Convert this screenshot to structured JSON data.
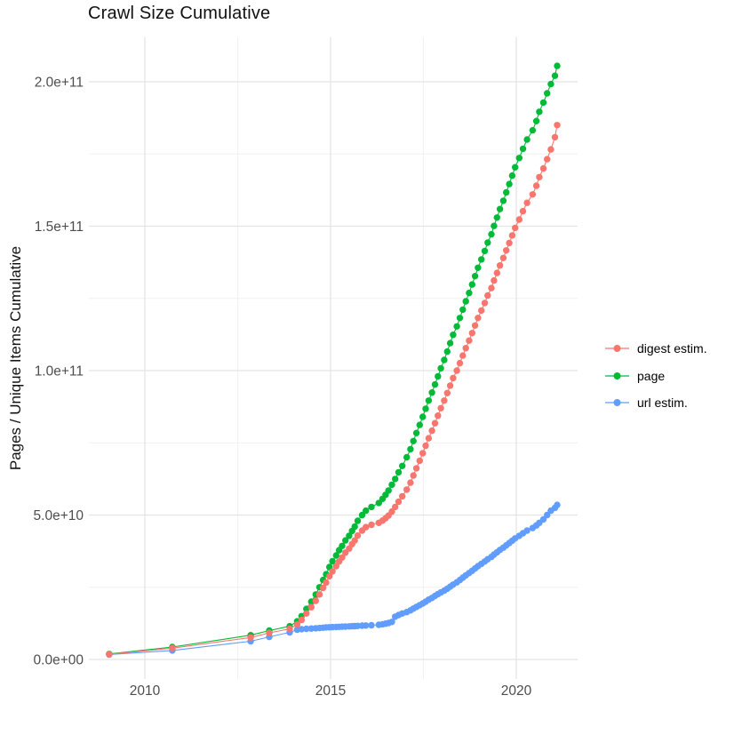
{
  "chart_data": {
    "type": "scatter",
    "title": "Crawl Size Cumulative",
    "xlabel": "",
    "ylabel": "Pages / Unique Items Cumulative",
    "legend_position": "right",
    "grid": true,
    "values_unit_multiplier": 1000000000,
    "x_axis": {
      "range": [
        2008.5,
        2021.7
      ],
      "ticks": [
        {
          "year": 2010,
          "label": "2010"
        },
        {
          "year": 2015,
          "label": "2015"
        },
        {
          "year": 2020,
          "label": "2020"
        }
      ],
      "minor": [
        2012.5,
        2017.5
      ]
    },
    "y_axis": {
      "range_billions": [
        -7,
        215
      ],
      "ticks": [
        {
          "value": 0,
          "label": "0.0e+00"
        },
        {
          "value": 50,
          "label": "5.0e+10"
        },
        {
          "value": 100,
          "label": "1.0e+11"
        },
        {
          "value": 150,
          "label": "1.5e+11"
        },
        {
          "value": 200,
          "label": "2.0e+11"
        }
      ],
      "minor": [
        25,
        75,
        125,
        175
      ]
    },
    "series": [
      {
        "name": "digest estim.",
        "color": "#F8766D",
        "points": [
          [
            2009.04,
            1.8
          ],
          [
            2010.74,
            3.9
          ],
          [
            2012.85,
            7.6
          ],
          [
            2013.35,
            9.2
          ],
          [
            2013.9,
            10.6
          ],
          [
            2014.1,
            12.1
          ],
          [
            2014.22,
            13.7
          ],
          [
            2014.35,
            15.9
          ],
          [
            2014.48,
            18.1
          ],
          [
            2014.6,
            20.3
          ],
          [
            2014.7,
            22.5
          ],
          [
            2014.8,
            24.8
          ],
          [
            2014.88,
            26.6
          ],
          [
            2014.97,
            28.8
          ],
          [
            2015.05,
            30.5
          ],
          [
            2015.15,
            32.3
          ],
          [
            2015.23,
            33.9
          ],
          [
            2015.31,
            35.3
          ],
          [
            2015.4,
            37.0
          ],
          [
            2015.5,
            38.4
          ],
          [
            2015.58,
            39.9
          ],
          [
            2015.65,
            41.2
          ],
          [
            2015.73,
            42.9
          ],
          [
            2015.85,
            44.6
          ],
          [
            2015.95,
            45.8
          ],
          [
            2016.1,
            46.6
          ],
          [
            2016.3,
            47.3
          ],
          [
            2016.4,
            48.1
          ],
          [
            2016.48,
            48.9
          ],
          [
            2016.56,
            49.8
          ],
          [
            2016.65,
            51.2
          ],
          [
            2016.74,
            52.8
          ],
          [
            2016.83,
            54.6
          ],
          [
            2016.93,
            56.5
          ],
          [
            2017.05,
            58.8
          ],
          [
            2017.15,
            61.2
          ],
          [
            2017.23,
            63.7
          ],
          [
            2017.31,
            66.2
          ],
          [
            2017.4,
            68.8
          ],
          [
            2017.48,
            71.4
          ],
          [
            2017.56,
            74.0
          ],
          [
            2017.64,
            76.6
          ],
          [
            2017.73,
            79.2
          ],
          [
            2017.81,
            81.8
          ],
          [
            2017.89,
            84.4
          ],
          [
            2017.97,
            87.0
          ],
          [
            2018.06,
            89.6
          ],
          [
            2018.14,
            92.2
          ],
          [
            2018.22,
            94.8
          ],
          [
            2018.3,
            97.4
          ],
          [
            2018.4,
            100.0
          ],
          [
            2018.48,
            102.6
          ],
          [
            2018.56,
            105.2
          ],
          [
            2018.64,
            107.8
          ],
          [
            2018.73,
            110.4
          ],
          [
            2018.81,
            113.0
          ],
          [
            2018.89,
            115.6
          ],
          [
            2018.97,
            118.2
          ],
          [
            2019.06,
            120.8
          ],
          [
            2019.15,
            123.4
          ],
          [
            2019.23,
            126.0
          ],
          [
            2019.33,
            128.6
          ],
          [
            2019.4,
            131.2
          ],
          [
            2019.48,
            133.8
          ],
          [
            2019.56,
            136.4
          ],
          [
            2019.65,
            139.0
          ],
          [
            2019.73,
            141.6
          ],
          [
            2019.81,
            144.2
          ],
          [
            2019.89,
            146.8
          ],
          [
            2019.97,
            149.4
          ],
          [
            2020.08,
            152.3
          ],
          [
            2020.18,
            155.2
          ],
          [
            2020.29,
            158.1
          ],
          [
            2020.44,
            161.0
          ],
          [
            2020.54,
            164.0
          ],
          [
            2020.62,
            167.0
          ],
          [
            2020.73,
            170.0
          ],
          [
            2020.83,
            173.2
          ],
          [
            2020.93,
            176.6
          ],
          [
            2021.04,
            180.8
          ],
          [
            2021.1,
            185.0
          ]
        ]
      },
      {
        "name": "page",
        "color": "#00BA38",
        "points": [
          [
            2009.04,
            1.9
          ],
          [
            2010.74,
            4.3
          ],
          [
            2012.85,
            8.4
          ],
          [
            2013.35,
            10.0
          ],
          [
            2013.9,
            11.5
          ],
          [
            2014.1,
            13.2
          ],
          [
            2014.22,
            15.0
          ],
          [
            2014.35,
            17.5
          ],
          [
            2014.48,
            20.0
          ],
          [
            2014.6,
            22.5
          ],
          [
            2014.7,
            25.0
          ],
          [
            2014.8,
            27.5
          ],
          [
            2014.88,
            29.5
          ],
          [
            2014.97,
            32.0
          ],
          [
            2015.05,
            34.0
          ],
          [
            2015.15,
            36.0
          ],
          [
            2015.23,
            37.8
          ],
          [
            2015.31,
            39.3
          ],
          [
            2015.4,
            41.2
          ],
          [
            2015.5,
            42.8
          ],
          [
            2015.58,
            44.5
          ],
          [
            2015.65,
            46.0
          ],
          [
            2015.73,
            48.0
          ],
          [
            2015.85,
            50.0
          ],
          [
            2015.95,
            51.5
          ],
          [
            2016.1,
            52.8
          ],
          [
            2016.3,
            54.2
          ],
          [
            2016.4,
            55.6
          ],
          [
            2016.48,
            57.0
          ],
          [
            2016.56,
            58.5
          ],
          [
            2016.65,
            60.5
          ],
          [
            2016.74,
            62.5
          ],
          [
            2016.83,
            64.8
          ],
          [
            2016.93,
            67.0
          ],
          [
            2017.05,
            70.0
          ],
          [
            2017.15,
            72.8
          ],
          [
            2017.23,
            75.6
          ],
          [
            2017.31,
            78.4
          ],
          [
            2017.4,
            81.2
          ],
          [
            2017.48,
            84.0
          ],
          [
            2017.56,
            86.8
          ],
          [
            2017.64,
            89.6
          ],
          [
            2017.73,
            92.4
          ],
          [
            2017.81,
            95.2
          ],
          [
            2017.89,
            98.0
          ],
          [
            2017.97,
            100.8
          ],
          [
            2018.06,
            103.7
          ],
          [
            2018.14,
            106.6
          ],
          [
            2018.22,
            109.5
          ],
          [
            2018.3,
            112.4
          ],
          [
            2018.4,
            115.3
          ],
          [
            2018.48,
            118.2
          ],
          [
            2018.56,
            121.1
          ],
          [
            2018.64,
            124.0
          ],
          [
            2018.73,
            126.9
          ],
          [
            2018.81,
            129.8
          ],
          [
            2018.89,
            132.7
          ],
          [
            2018.97,
            135.6
          ],
          [
            2019.06,
            138.5
          ],
          [
            2019.15,
            141.4
          ],
          [
            2019.23,
            144.3
          ],
          [
            2019.33,
            147.2
          ],
          [
            2019.4,
            150.1
          ],
          [
            2019.48,
            153.0
          ],
          [
            2019.56,
            155.9
          ],
          [
            2019.65,
            158.8
          ],
          [
            2019.73,
            161.7
          ],
          [
            2019.81,
            164.6
          ],
          [
            2019.89,
            167.5
          ],
          [
            2019.97,
            170.4
          ],
          [
            2020.08,
            173.6
          ],
          [
            2020.18,
            176.8
          ],
          [
            2020.29,
            180.0
          ],
          [
            2020.44,
            183.2
          ],
          [
            2020.54,
            186.4
          ],
          [
            2020.62,
            189.6
          ],
          [
            2020.73,
            192.8
          ],
          [
            2020.83,
            196.0
          ],
          [
            2020.93,
            199.2
          ],
          [
            2021.04,
            202.1
          ],
          [
            2021.1,
            205.5
          ]
        ]
      },
      {
        "name": "url estim.",
        "color": "#619CFF",
        "points": [
          [
            2009.04,
            1.7
          ],
          [
            2010.74,
            3.1
          ],
          [
            2012.85,
            6.3
          ],
          [
            2013.35,
            7.8
          ],
          [
            2013.9,
            9.4
          ],
          [
            2014.1,
            10.3
          ],
          [
            2014.22,
            10.5
          ],
          [
            2014.35,
            10.6
          ],
          [
            2014.48,
            10.7
          ],
          [
            2014.6,
            10.8
          ],
          [
            2014.7,
            10.9
          ],
          [
            2014.8,
            11.0
          ],
          [
            2014.88,
            11.1
          ],
          [
            2014.97,
            11.15
          ],
          [
            2015.05,
            11.2
          ],
          [
            2015.15,
            11.25
          ],
          [
            2015.23,
            11.3
          ],
          [
            2015.31,
            11.35
          ],
          [
            2015.4,
            11.4
          ],
          [
            2015.5,
            11.45
          ],
          [
            2015.58,
            11.5
          ],
          [
            2015.65,
            11.55
          ],
          [
            2015.73,
            11.6
          ],
          [
            2015.85,
            11.7
          ],
          [
            2015.95,
            11.75
          ],
          [
            2016.1,
            11.85
          ],
          [
            2016.3,
            12.0
          ],
          [
            2016.4,
            12.2
          ],
          [
            2016.48,
            12.4
          ],
          [
            2016.56,
            12.6
          ],
          [
            2016.65,
            13.0
          ],
          [
            2016.74,
            14.8
          ],
          [
            2016.83,
            15.4
          ],
          [
            2016.93,
            15.9
          ],
          [
            2017.05,
            16.4
          ],
          [
            2017.15,
            17.0
          ],
          [
            2017.23,
            17.6
          ],
          [
            2017.31,
            18.2
          ],
          [
            2017.4,
            18.8
          ],
          [
            2017.48,
            19.4
          ],
          [
            2017.56,
            20.0
          ],
          [
            2017.64,
            20.7
          ],
          [
            2017.73,
            21.3
          ],
          [
            2017.81,
            22.0
          ],
          [
            2017.89,
            22.6
          ],
          [
            2017.97,
            23.2
          ],
          [
            2018.06,
            23.8
          ],
          [
            2018.14,
            24.5
          ],
          [
            2018.22,
            25.2
          ],
          [
            2018.3,
            25.9
          ],
          [
            2018.4,
            26.7
          ],
          [
            2018.48,
            27.5
          ],
          [
            2018.56,
            28.3
          ],
          [
            2018.64,
            29.1
          ],
          [
            2018.73,
            29.9
          ],
          [
            2018.81,
            30.7
          ],
          [
            2018.89,
            31.5
          ],
          [
            2018.97,
            32.3
          ],
          [
            2019.06,
            33.1
          ],
          [
            2019.15,
            33.9
          ],
          [
            2019.23,
            34.7
          ],
          [
            2019.33,
            35.5
          ],
          [
            2019.4,
            36.3
          ],
          [
            2019.48,
            37.1
          ],
          [
            2019.56,
            37.9
          ],
          [
            2019.65,
            38.7
          ],
          [
            2019.73,
            39.5
          ],
          [
            2019.81,
            40.3
          ],
          [
            2019.89,
            41.1
          ],
          [
            2019.97,
            41.9
          ],
          [
            2020.08,
            42.8
          ],
          [
            2020.18,
            43.7
          ],
          [
            2020.29,
            44.6
          ],
          [
            2020.44,
            45.5
          ],
          [
            2020.54,
            46.4
          ],
          [
            2020.62,
            47.3
          ],
          [
            2020.73,
            48.5
          ],
          [
            2020.83,
            50.0
          ],
          [
            2020.93,
            51.5
          ],
          [
            2021.04,
            52.5
          ],
          [
            2021.1,
            53.5
          ]
        ]
      }
    ]
  }
}
